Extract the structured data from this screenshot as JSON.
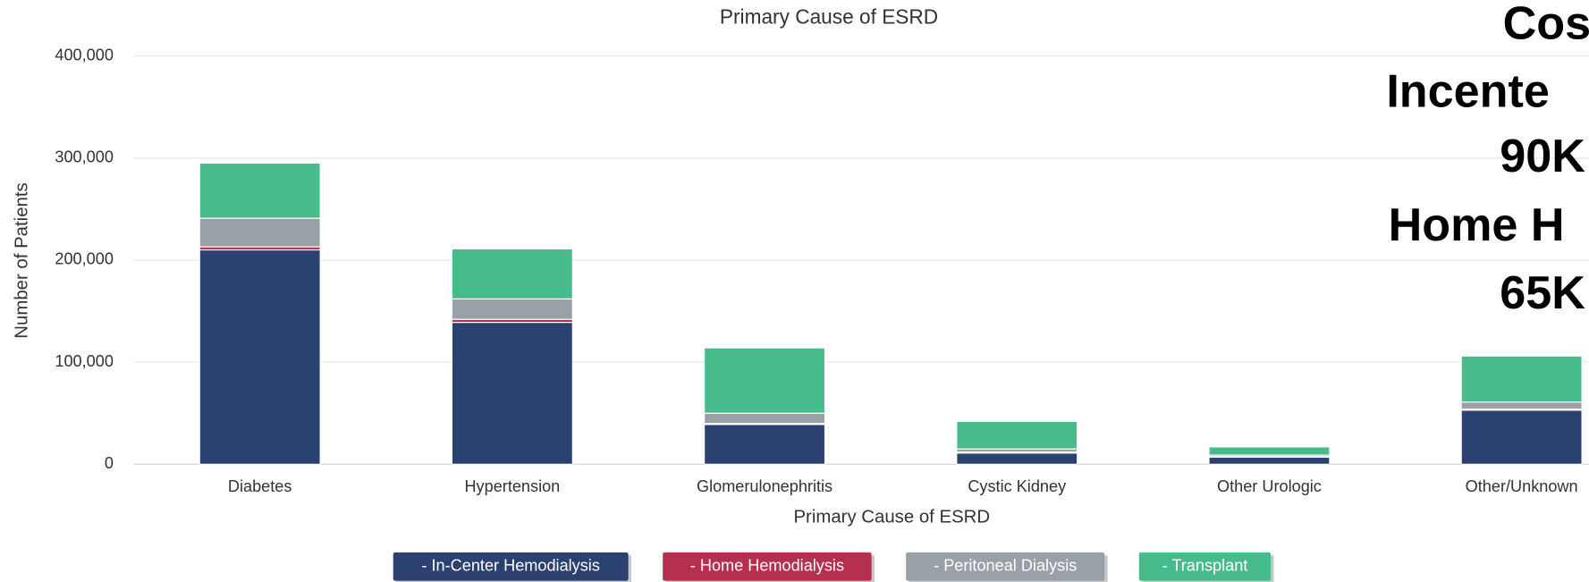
{
  "chart_data": {
    "type": "stacked_bar",
    "title": "Primary Cause of ESRD",
    "x_label": "Primary Cause of ESRD",
    "y_label": "Number of Patients",
    "categories": [
      "Diabetes",
      "Hypertension",
      "Glomerulonephritis",
      "Cystic Kidney",
      "Other Urologic",
      "Other/Unknown"
    ],
    "series": [
      {
        "name": "- In-Center Hemodialysis",
        "color": "#2b4170",
        "values": [
          210000,
          139000,
          39000,
          11000,
          7000,
          53000
        ]
      },
      {
        "name": "- Home Hemodialysis",
        "color": "#b5304e",
        "values": [
          3000,
          3000,
          1000,
          1000,
          500,
          1000
        ]
      },
      {
        "name": "- Peritoneal Dialysis",
        "color": "#9aa0a8",
        "values": [
          28000,
          20000,
          10000,
          3000,
          1500,
          7000
        ]
      },
      {
        "name": "- Transplant",
        "color": "#47bb8c",
        "values": [
          54000,
          49000,
          64000,
          27000,
          8000,
          45000
        ]
      }
    ],
    "ylim": [
      0,
      400000
    ],
    "yticks": [
      {
        "value": 0,
        "label": "0"
      },
      {
        "value": 100000,
        "label": "100,000"
      },
      {
        "value": 200000,
        "label": "200,000"
      },
      {
        "value": 300000,
        "label": "300,000"
      },
      {
        "value": 400000,
        "label": "400,000"
      }
    ],
    "grid": true,
    "annotations": [
      "Cos",
      "Incente",
      "90K",
      "Home H",
      "65K"
    ]
  }
}
